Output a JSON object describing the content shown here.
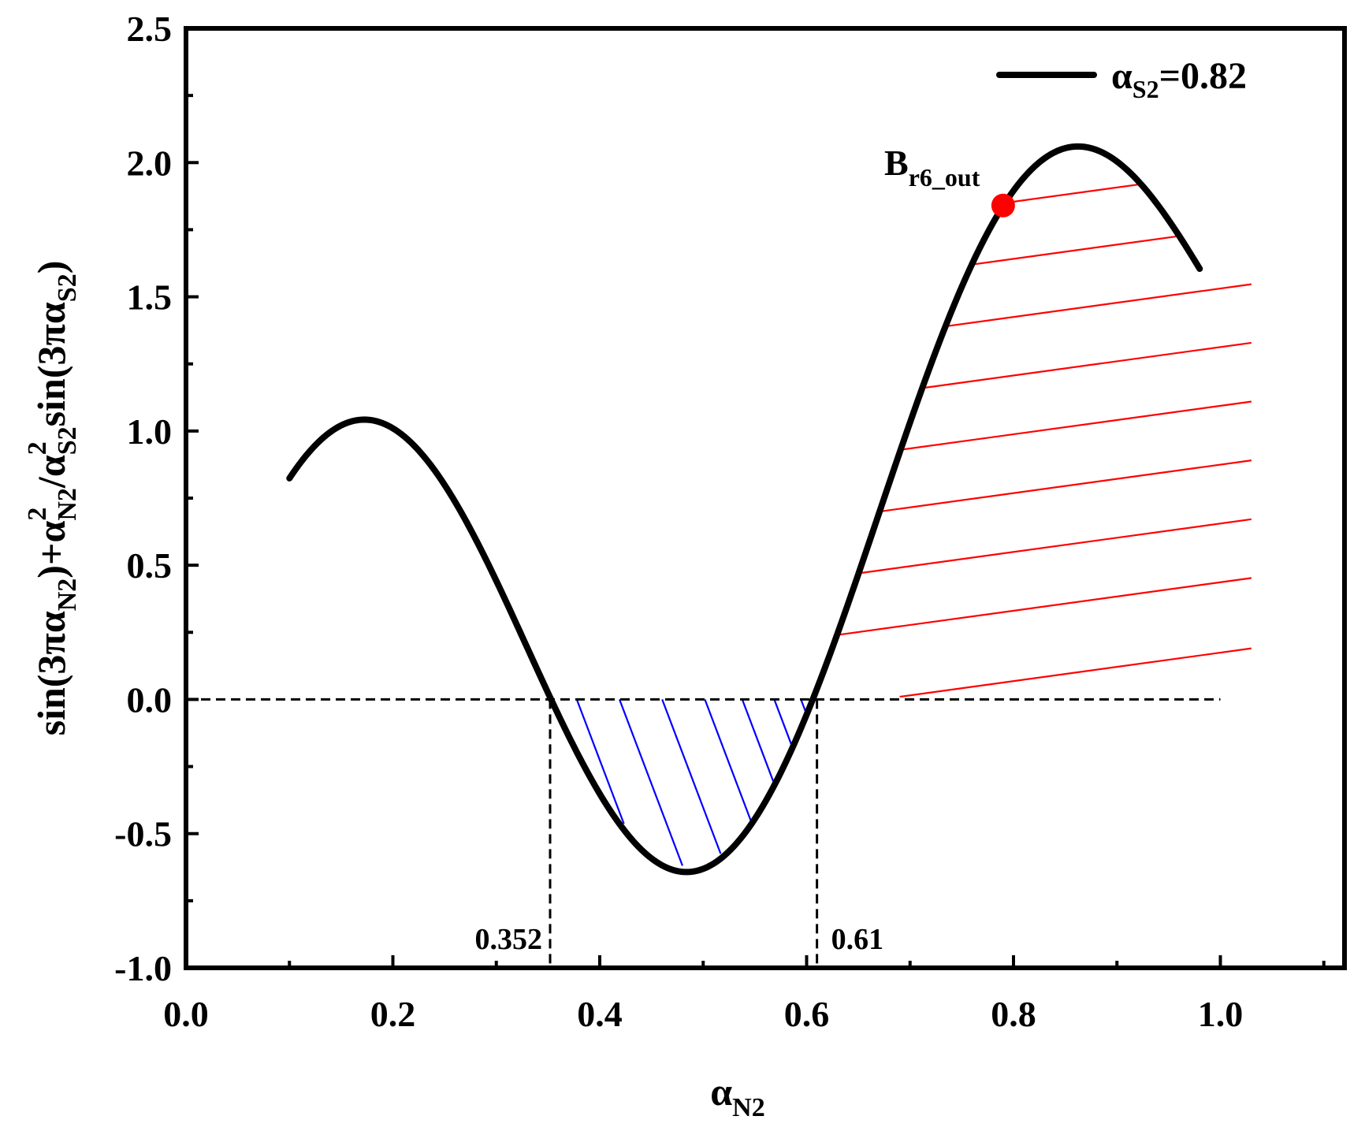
{
  "chart_data": {
    "type": "line",
    "title": "",
    "xlabel": {
      "base": "α",
      "sub": "N2"
    },
    "ylabel": [
      {
        "t": "sin(3",
        "s": "normal"
      },
      {
        "t": "πα",
        "s": "normal"
      },
      {
        "t": "N2",
        "s": "sub"
      },
      {
        "t": ")+",
        "s": "normal"
      },
      {
        "t": "α",
        "s": "normal"
      },
      {
        "t": "2",
        "s": "sup"
      },
      {
        "t": "N2",
        "s": "sub"
      },
      {
        "t": "/",
        "s": "normal"
      },
      {
        "t": "α",
        "s": "normal"
      },
      {
        "t": "2",
        "s": "sup"
      },
      {
        "t": "S2",
        "s": "sub"
      },
      {
        "t": "sin(3",
        "s": "normal"
      },
      {
        "t": "πα",
        "s": "normal"
      },
      {
        "t": "S2",
        "s": "sub"
      },
      {
        "t": ")",
        "s": "normal"
      }
    ],
    "xlim": [
      0.0,
      1.12
    ],
    "ylim": [
      -1.0,
      2.5
    ],
    "xticks": [
      0.0,
      0.2,
      0.4,
      0.6,
      0.8,
      1.0
    ],
    "xtick_labels": [
      "0.0",
      "0.2",
      "0.4",
      "0.6",
      "0.8",
      "1.0"
    ],
    "yticks": [
      -1.0,
      -0.5,
      0.0,
      0.5,
      1.0,
      1.5,
      2.0,
      2.5
    ],
    "ytick_labels": [
      "-1.0",
      "-0.5",
      "0.0",
      "0.5",
      "1.0",
      "1.5",
      "2.0",
      "2.5"
    ],
    "grid": false,
    "legend": {
      "position": "top-right",
      "entries": [
        {
          "base": "α",
          "sub": "S2",
          "rest": "=0.82",
          "color": "#000000"
        }
      ]
    },
    "series": [
      {
        "name": "αS2=0.82",
        "alpha_s2": 0.82,
        "x_range": [
          0.1,
          0.98
        ],
        "color": "#000000",
        "formula": "sin(3πx) + x²/αS2² · sin(3π·αS2)"
      }
    ],
    "zero_line": {
      "y": 0.0,
      "x_range": [
        0.0,
        1.0
      ],
      "style": "dashed"
    },
    "roots": [
      {
        "x": 0.352,
        "label": "0.352"
      },
      {
        "x": 0.61,
        "label": "0.61"
      }
    ],
    "hatched_regions": [
      {
        "x_range": [
          0.352,
          0.61
        ],
        "color": "#0000ff",
        "sign": "negative"
      },
      {
        "x_range": [
          0.61,
          1.03
        ],
        "color": "#ff0000",
        "sign": "positive"
      }
    ],
    "marker": {
      "label_base": "B",
      "label_sub": "r6_out",
      "x": 0.79,
      "y": 1.84,
      "color": "#ff0000"
    }
  }
}
